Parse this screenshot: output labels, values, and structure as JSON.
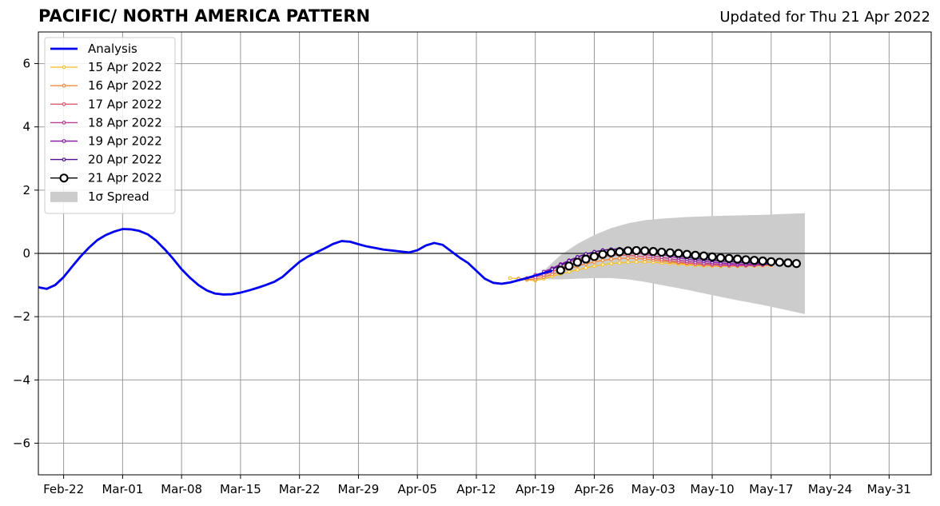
{
  "chart_data": {
    "type": "line",
    "title": "PACIFIC/ NORTH AMERICA PATTERN",
    "subtitle": "Updated for Thu 21 Apr 2022",
    "xlabel": "",
    "ylabel": "",
    "xlim": [
      "2022-02-19",
      "2022-06-05"
    ],
    "ylim": [
      -7,
      7
    ],
    "grid": true,
    "legend_position": "top-left",
    "x_ticks": [
      {
        "date": "2022-02-22",
        "label": "Feb-22"
      },
      {
        "date": "2022-03-01",
        "label": "Mar-01"
      },
      {
        "date": "2022-03-08",
        "label": "Mar-08"
      },
      {
        "date": "2022-03-15",
        "label": "Mar-15"
      },
      {
        "date": "2022-03-22",
        "label": "Mar-22"
      },
      {
        "date": "2022-03-29",
        "label": "Mar-29"
      },
      {
        "date": "2022-04-05",
        "label": "Apr-05"
      },
      {
        "date": "2022-04-12",
        "label": "Apr-12"
      },
      {
        "date": "2022-04-19",
        "label": "Apr-19"
      },
      {
        "date": "2022-04-26",
        "label": "Apr-26"
      },
      {
        "date": "2022-05-03",
        "label": "May-03"
      },
      {
        "date": "2022-05-10",
        "label": "May-10"
      },
      {
        "date": "2022-05-17",
        "label": "May-17"
      },
      {
        "date": "2022-05-24",
        "label": "May-24"
      },
      {
        "date": "2022-05-31",
        "label": "May-31"
      }
    ],
    "y_ticks": [
      {
        "value": 6,
        "label": "6"
      },
      {
        "value": 4,
        "label": "4"
      },
      {
        "value": 2,
        "label": "2"
      },
      {
        "value": 0,
        "label": "0"
      },
      {
        "value": -2,
        "label": "−2"
      },
      {
        "value": -4,
        "label": "−4"
      },
      {
        "value": -6,
        "label": "−6"
      }
    ],
    "analysis": {
      "name": "Analysis",
      "color": "#0000ee",
      "x": [
        "2022-02-19",
        "2022-02-20",
        "2022-02-21",
        "2022-02-22",
        "2022-02-23",
        "2022-02-24",
        "2022-02-25",
        "2022-02-26",
        "2022-02-27",
        "2022-02-28",
        "2022-03-01",
        "2022-03-02",
        "2022-03-03",
        "2022-03-04",
        "2022-03-05",
        "2022-03-06",
        "2022-03-07",
        "2022-03-08",
        "2022-03-09",
        "2022-03-10",
        "2022-03-11",
        "2022-03-12",
        "2022-03-13",
        "2022-03-14",
        "2022-03-15",
        "2022-03-16",
        "2022-03-17",
        "2022-03-18",
        "2022-03-19",
        "2022-03-20",
        "2022-03-21",
        "2022-03-22",
        "2022-03-23",
        "2022-03-24",
        "2022-03-25",
        "2022-03-26",
        "2022-03-27",
        "2022-03-28",
        "2022-03-29",
        "2022-03-30",
        "2022-03-31",
        "2022-04-01",
        "2022-04-02",
        "2022-04-03",
        "2022-04-04",
        "2022-04-05",
        "2022-04-06",
        "2022-04-07",
        "2022-04-08",
        "2022-04-09",
        "2022-04-10",
        "2022-04-11",
        "2022-04-12",
        "2022-04-13",
        "2022-04-14",
        "2022-04-15",
        "2022-04-16",
        "2022-04-17",
        "2022-04-18",
        "2022-04-19",
        "2022-04-20",
        "2022-04-21"
      ],
      "y": [
        -1.07,
        -1.12,
        -1.0,
        -0.75,
        -0.42,
        -0.1,
        0.18,
        0.42,
        0.58,
        0.69,
        0.77,
        0.76,
        0.71,
        0.6,
        0.4,
        0.13,
        -0.17,
        -0.5,
        -0.77,
        -1.0,
        -1.17,
        -1.27,
        -1.3,
        -1.29,
        -1.24,
        -1.17,
        -1.09,
        -1.0,
        -0.9,
        -0.74,
        -0.5,
        -0.27,
        -0.1,
        0.03,
        0.16,
        0.3,
        0.39,
        0.37,
        0.29,
        0.22,
        0.17,
        0.12,
        0.09,
        0.06,
        0.03,
        0.1,
        0.25,
        0.33,
        0.27,
        0.07,
        -0.13,
        -0.3,
        -0.55,
        -0.8,
        -0.93,
        -0.96,
        -0.92,
        -0.85,
        -0.78,
        -0.7,
        -0.62,
        -0.55
      ]
    },
    "spread": {
      "name": "1σ Spread",
      "color": "#cccccc",
      "x": [
        "2022-04-20",
        "2022-04-21",
        "2022-04-22",
        "2022-04-24",
        "2022-04-26",
        "2022-04-28",
        "2022-04-30",
        "2022-05-02",
        "2022-05-04",
        "2022-05-07",
        "2022-05-10",
        "2022-05-13",
        "2022-05-16",
        "2022-05-19",
        "2022-05-21"
      ],
      "upper": [
        -0.55,
        -0.3,
        -0.05,
        0.3,
        0.58,
        0.8,
        0.95,
        1.05,
        1.1,
        1.15,
        1.18,
        1.2,
        1.22,
        1.25,
        1.27
      ],
      "lower": [
        -0.8,
        -0.82,
        -0.82,
        -0.8,
        -0.78,
        -0.78,
        -0.82,
        -0.9,
        -1.0,
        -1.15,
        -1.32,
        -1.48,
        -1.63,
        -1.8,
        -1.92
      ]
    },
    "series": [
      {
        "name": "15 Apr 2022",
        "color": "#f5c232",
        "start": "2022-04-16",
        "values": [
          -0.78,
          -0.8,
          -0.84,
          -0.86,
          -0.8,
          -0.72,
          -0.65,
          -0.58,
          -0.52,
          -0.46,
          -0.4,
          -0.36,
          -0.32,
          -0.3,
          -0.28,
          -0.27,
          -0.27,
          -0.28,
          -0.3,
          -0.32,
          -0.34,
          -0.36,
          -0.38,
          -0.39,
          -0.4,
          -0.41,
          -0.41,
          -0.41,
          -0.4,
          -0.4,
          -0.39,
          -0.38
        ]
      },
      {
        "name": "16 Apr 2022",
        "color": "#f08a3c",
        "start": "2022-04-17",
        "values": [
          -0.8,
          -0.82,
          -0.82,
          -0.75,
          -0.66,
          -0.57,
          -0.48,
          -0.4,
          -0.33,
          -0.27,
          -0.22,
          -0.18,
          -0.16,
          -0.15,
          -0.16,
          -0.18,
          -0.21,
          -0.24,
          -0.27,
          -0.3,
          -0.32,
          -0.34,
          -0.36,
          -0.37,
          -0.38,
          -0.38,
          -0.38,
          -0.37,
          -0.36,
          -0.35,
          -0.34
        ]
      },
      {
        "name": "17 Apr 2022",
        "color": "#dd5a6e",
        "start": "2022-04-18",
        "values": [
          -0.78,
          -0.76,
          -0.68,
          -0.58,
          -0.47,
          -0.37,
          -0.28,
          -0.2,
          -0.14,
          -0.09,
          -0.06,
          -0.05,
          -0.06,
          -0.08,
          -0.11,
          -0.15,
          -0.19,
          -0.23,
          -0.27,
          -0.3,
          -0.33,
          -0.35,
          -0.37,
          -0.38,
          -0.39,
          -0.39,
          -0.39,
          -0.38,
          -0.37,
          -0.36
        ]
      },
      {
        "name": "18 Apr 2022",
        "color": "#b83c92",
        "start": "2022-04-19",
        "values": [
          -0.68,
          -0.6,
          -0.5,
          -0.39,
          -0.28,
          -0.18,
          -0.1,
          -0.03,
          0.02,
          0.04,
          0.05,
          0.04,
          0.01,
          -0.03,
          -0.08,
          -0.12,
          -0.17,
          -0.21,
          -0.25,
          -0.28,
          -0.31,
          -0.33,
          -0.35,
          -0.36,
          -0.37,
          -0.37,
          -0.37,
          -0.36,
          -0.35
        ]
      },
      {
        "name": "19 Apr 2022",
        "color": "#8a1fa8",
        "start": "2022-04-20",
        "values": [
          -0.58,
          -0.47,
          -0.34,
          -0.22,
          -0.11,
          -0.02,
          0.05,
          0.1,
          0.13,
          0.14,
          0.13,
          0.1,
          0.06,
          0.01,
          -0.04,
          -0.09,
          -0.14,
          -0.18,
          -0.22,
          -0.25,
          -0.28,
          -0.3,
          -0.32,
          -0.33,
          -0.34,
          -0.34,
          -0.34,
          -0.33
        ]
      },
      {
        "name": "20 Apr 2022",
        "color": "#4c0d90",
        "start": "2022-04-21",
        "values": [
          -0.5,
          -0.37,
          -0.24,
          -0.12,
          -0.02,
          0.05,
          0.1,
          0.13,
          0.14,
          0.13,
          0.11,
          0.08,
          0.04,
          0.0,
          -0.04,
          -0.08,
          -0.12,
          -0.16,
          -0.19,
          -0.22,
          -0.24,
          -0.26,
          -0.28,
          -0.29,
          -0.3,
          -0.3,
          -0.3
        ]
      },
      {
        "name": "21 Apr 2022",
        "color": "#000000",
        "start": "2022-04-22",
        "values": [
          -0.53,
          -0.4,
          -0.28,
          -0.18,
          -0.1,
          -0.03,
          0.02,
          0.05,
          0.08,
          0.09,
          0.08,
          0.06,
          0.04,
          0.02,
          0.0,
          -0.03,
          -0.06,
          -0.08,
          -0.11,
          -0.14,
          -0.16,
          -0.18,
          -0.2,
          -0.22,
          -0.24,
          -0.26,
          -0.28,
          -0.3,
          -0.32
        ]
      }
    ]
  }
}
